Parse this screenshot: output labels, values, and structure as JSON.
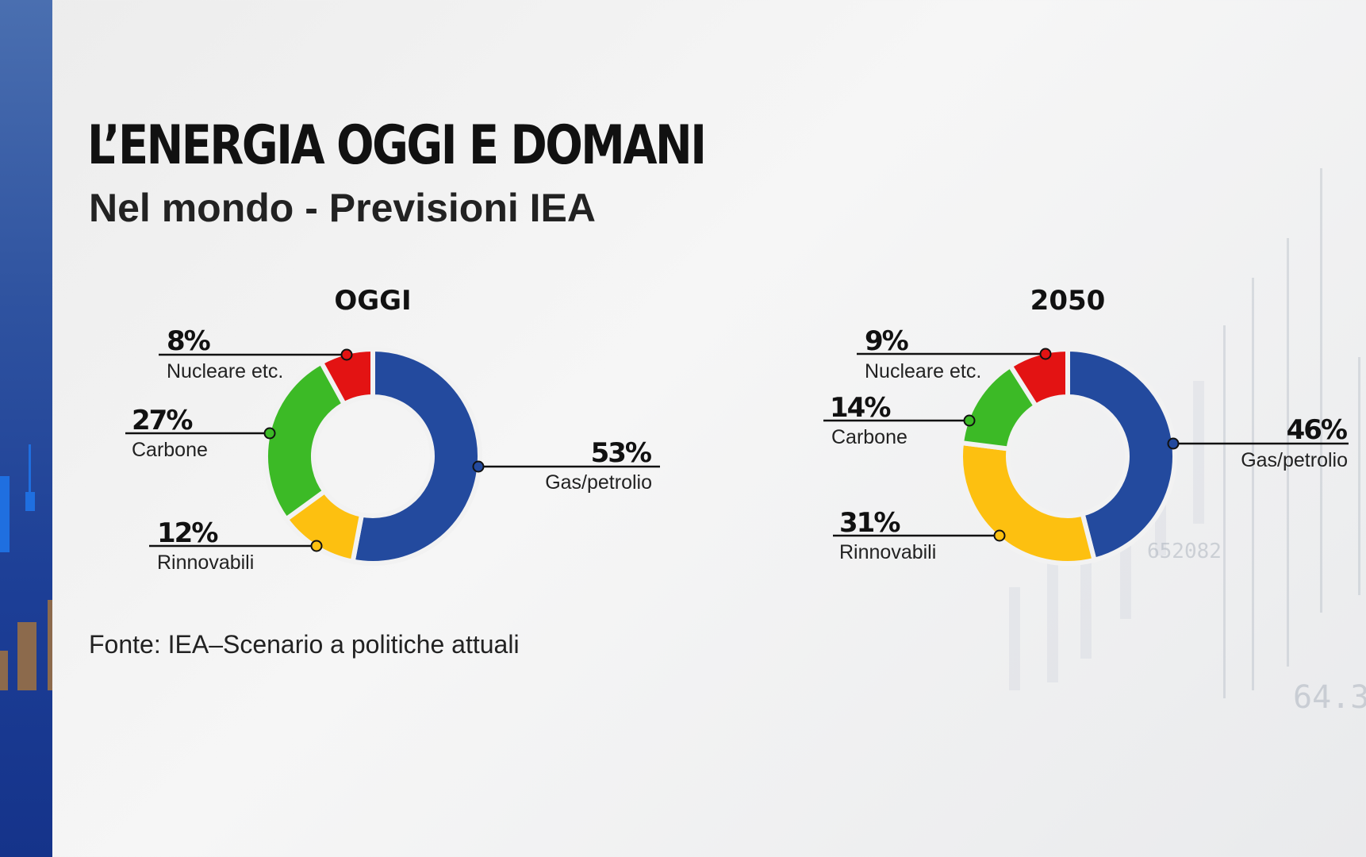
{
  "header": {
    "title": "L’ENERGIA OGGI E DOMANI",
    "subtitle": "Nel mondo - Previsioni IEA"
  },
  "source": "Fonte: IEA–Scenario a politiche attuali",
  "colors": {
    "Gas/petrolio": "#234a9e",
    "Rinnovabili": "#fdc010",
    "Carbone": "#3cba26",
    "Nucleare etc.": "#e31313"
  },
  "chart_data": [
    {
      "type": "pie",
      "title": "OGGI",
      "categories": [
        "Gas/petrolio",
        "Rinnovabili",
        "Carbone",
        "Nucleare etc."
      ],
      "values": [
        53,
        12,
        27,
        8
      ],
      "labels": [
        "53%",
        "12%",
        "27%",
        "8%"
      ]
    },
    {
      "type": "pie",
      "title": "2050",
      "categories": [
        "Gas/petrolio",
        "Rinnovabili",
        "Carbone",
        "Nucleare etc."
      ],
      "values": [
        46,
        31,
        14,
        9
      ],
      "labels": [
        "46%",
        "31%",
        "14%",
        "9%"
      ]
    }
  ]
}
